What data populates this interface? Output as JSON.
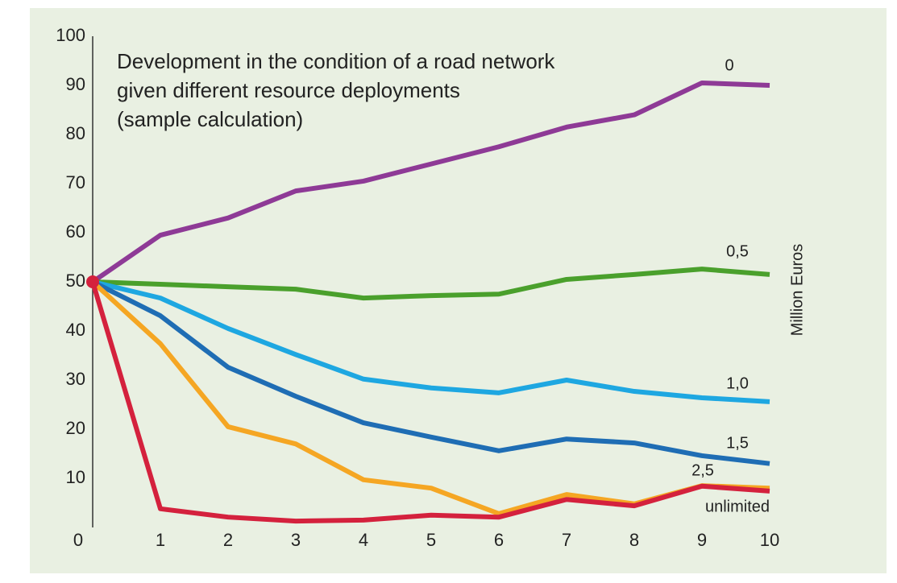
{
  "chart_data": {
    "type": "line",
    "title": [
      "Development in the condition of a road network",
      "given different resource deployments",
      "(sample calculation)"
    ],
    "y_axis_label": "Million Euros",
    "x": [
      0,
      1,
      2,
      3,
      4,
      5,
      6,
      7,
      8,
      9,
      10
    ],
    "xlim": [
      0,
      10
    ],
    "xticks": [
      0,
      1,
      2,
      3,
      4,
      5,
      6,
      7,
      8,
      9,
      10
    ],
    "ylim": [
      0,
      100
    ],
    "yticks": [
      10,
      20,
      30,
      40,
      50,
      60,
      70,
      80,
      90,
      100
    ],
    "series": [
      {
        "name": "0",
        "color": "#8e3a96",
        "values": [
          50,
          59.5,
          63,
          68.5,
          70.5,
          74,
          77.5,
          81.5,
          84,
          90.5,
          90
        ]
      },
      {
        "name": "0,5",
        "color": "#4aa02c",
        "values": [
          50,
          49.5,
          49,
          48.5,
          46.7,
          47.2,
          47.5,
          50.5,
          51.5,
          52.6,
          51.5
        ]
      },
      {
        "name": "1,0",
        "color": "#1ea7e1",
        "values": [
          50,
          46.7,
          40.5,
          35.2,
          30.2,
          28.4,
          27.4,
          30,
          27.7,
          26.4,
          25.6
        ]
      },
      {
        "name": "1,5",
        "color": "#1f6db4",
        "values": [
          50,
          43.1,
          32.6,
          26.7,
          21.3,
          18.4,
          15.6,
          18,
          17.2,
          14.6,
          13
        ]
      },
      {
        "name": "2,5",
        "color": "#f5a623",
        "values": [
          50,
          37.4,
          20.5,
          17,
          9.7,
          8,
          2.8,
          6.7,
          4.8,
          8.5,
          8
        ]
      },
      {
        "name": "unlimited",
        "color": "#d4213d",
        "values": [
          50,
          3.8,
          2.1,
          1.3,
          1.5,
          2.5,
          2.1,
          5.7,
          4.4,
          8.4,
          7.4
        ]
      }
    ]
  }
}
